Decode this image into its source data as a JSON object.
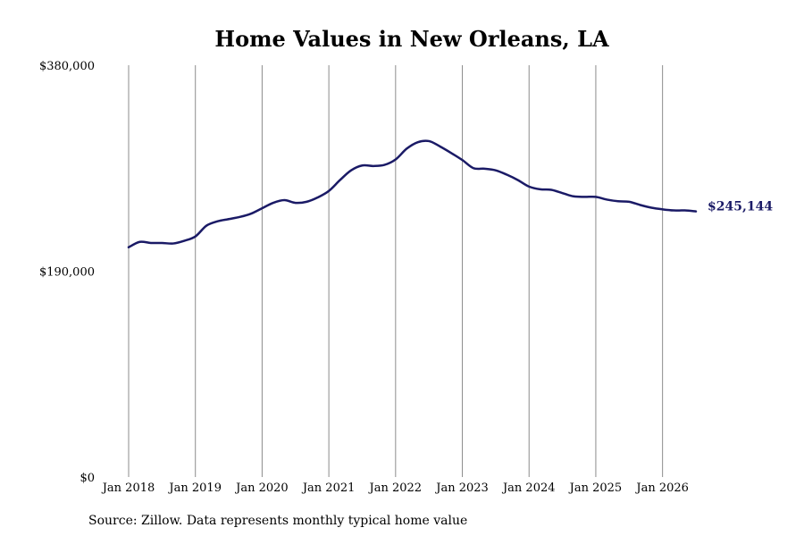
{
  "colors": {
    "line": "#1a1a66",
    "grid": "#8c8c8c",
    "background": "#ffffff"
  },
  "source": "Source: Zillow. Data represents monthly typical home value",
  "chart_data": {
    "type": "line",
    "title": "Home Values in New Orleans, LA",
    "xlabel": "",
    "ylabel": "",
    "xlim": [
      "2018-01",
      "2026-07"
    ],
    "ylim": [
      0,
      380000
    ],
    "y_ticks": [
      {
        "value": 0,
        "label": "$0"
      },
      {
        "value": 190000,
        "label": "$190,000"
      },
      {
        "value": 380000,
        "label": "$380,000"
      }
    ],
    "x_ticks": [
      {
        "date": "2018-01",
        "label": "Jan 2018"
      },
      {
        "date": "2019-01",
        "label": "Jan 2019"
      },
      {
        "date": "2020-01",
        "label": "Jan 2020"
      },
      {
        "date": "2021-01",
        "label": "Jan 2021"
      },
      {
        "date": "2022-01",
        "label": "Jan 2022"
      },
      {
        "date": "2023-01",
        "label": "Jan 2023"
      },
      {
        "date": "2024-01",
        "label": "Jan 2024"
      },
      {
        "date": "2025-01",
        "label": "Jan 2025"
      },
      {
        "date": "2026-01",
        "label": "Jan 2026"
      }
    ],
    "vertical_grid": true,
    "end_label": "$245,144",
    "series": [
      {
        "x": [
          "2018-01",
          "2018-03",
          "2018-05",
          "2018-07",
          "2018-09",
          "2018-11",
          "2019-01",
          "2019-03",
          "2019-05",
          "2019-07",
          "2019-09",
          "2019-11",
          "2020-01",
          "2020-03",
          "2020-05",
          "2020-07",
          "2020-09",
          "2020-11",
          "2021-01",
          "2021-03",
          "2021-05",
          "2021-07",
          "2021-09",
          "2021-11",
          "2022-01",
          "2022-03",
          "2022-05",
          "2022-07",
          "2022-09",
          "2022-11",
          "2023-01",
          "2023-03",
          "2023-05",
          "2023-07",
          "2023-09",
          "2023-11",
          "2024-01",
          "2024-03",
          "2024-05",
          "2024-07",
          "2024-09",
          "2024-11",
          "2025-01",
          "2025-03",
          "2025-05",
          "2025-07",
          "2025-09",
          "2025-11",
          "2026-01",
          "2026-03",
          "2026-05",
          "2026-07"
        ],
        "values": [
          212000,
          217000,
          216000,
          216000,
          215500,
          218000,
          222000,
          232000,
          236000,
          238000,
          240000,
          243000,
          248000,
          253000,
          255500,
          253000,
          254000,
          258000,
          264000,
          274000,
          283000,
          287500,
          287000,
          288000,
          293000,
          303000,
          309000,
          310000,
          305000,
          299000,
          292500,
          285000,
          284500,
          283000,
          279000,
          274000,
          268000,
          265500,
          265000,
          262000,
          259000,
          258500,
          258500,
          256000,
          254500,
          254000,
          251000,
          248500,
          247000,
          246000,
          246000,
          245144
        ]
      }
    ]
  }
}
